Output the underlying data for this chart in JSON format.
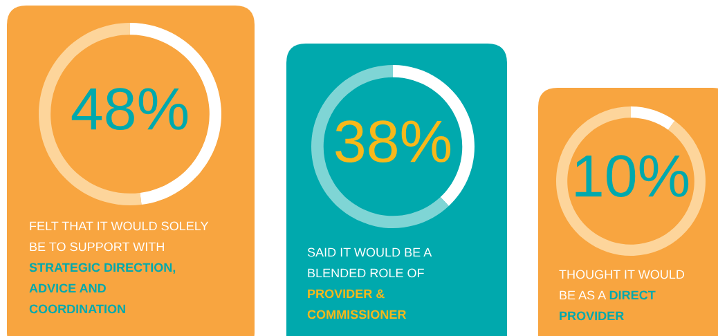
{
  "chart_data": [
    {
      "type": "donut",
      "categories": [
        null,
        null
      ],
      "values": [
        48,
        52
      ],
      "colors": [
        "#ffffff",
        "#fdd59b"
      ],
      "value_labels": [
        "48%",
        null
      ],
      "annotations": [
        "FELT THAT IT WOULD SOLELY\nBE TO SUPPORT WITH\n",
        "STRATEGIC DIRECTION,\nADVICE AND\nCOORDINATION"
      ]
    },
    {
      "type": "donut",
      "categories": [
        null,
        null
      ],
      "values": [
        38,
        62
      ],
      "colors": [
        "#ffffff",
        "#7fd5d5"
      ],
      "value_labels": [
        "38%",
        null
      ],
      "annotations": [
        "SAID IT WOULD BE A\nBLENDED ROLE OF\n",
        "PROVIDER &\nCOMMISSIONER"
      ]
    },
    {
      "type": "donut",
      "categories": [
        null,
        null
      ],
      "values": [
        10,
        90
      ],
      "colors": [
        "#ffffff",
        "#fdd59b"
      ],
      "value_labels": [
        "10%",
        null
      ],
      "annotations": [
        "THOUGHT IT WOULD\nBE AS A ",
        "DIRECT\nPROVIDER"
      ]
    }
  ]
}
